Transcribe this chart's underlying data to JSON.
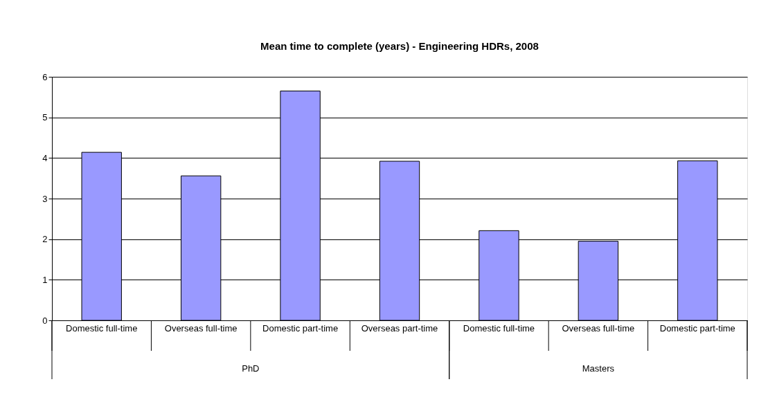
{
  "chart_data": {
    "type": "bar",
    "title": "Mean time to complete (years) - Engineering HDRs, 2008",
    "categories": [
      "Domestic full-time",
      "Overseas full-time",
      "Domestic part-time",
      "Overseas part-time",
      "Domestic full-time",
      "Overseas full-time",
      "Domestic part-time"
    ],
    "series": [
      {
        "color": "#9999ff",
        "values": [
          4.14,
          3.56,
          5.65,
          3.92,
          2.21,
          1.95,
          3.93
        ]
      }
    ],
    "ylim": [
      0,
      6
    ],
    "yticks": [
      0,
      1,
      2,
      3,
      4,
      5,
      6
    ],
    "grid": "y",
    "annotations": [
      "PhD",
      "Masters"
    ]
  }
}
